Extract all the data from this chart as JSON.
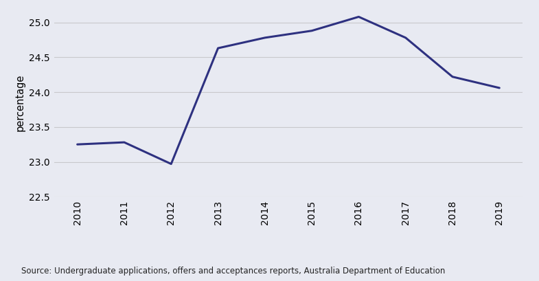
{
  "years": [
    2010,
    2011,
    2012,
    2013,
    2014,
    2015,
    2016,
    2017,
    2018,
    2019
  ],
  "values": [
    23.25,
    23.28,
    22.97,
    24.63,
    24.78,
    24.88,
    25.08,
    24.78,
    24.22,
    24.06
  ],
  "line_color": "#2e3180",
  "line_width": 2.2,
  "background_color": "#e8eaf2",
  "ylabel": "percentage",
  "ylim": [
    22.5,
    25.2
  ],
  "yticks": [
    22.5,
    23.0,
    23.5,
    24.0,
    24.5,
    25.0
  ],
  "grid_color": "#c8c8cc",
  "source_text": "Source: Undergraduate applications, offers and acceptances reports, Australia Department of Education",
  "tick_fontsize": 10,
  "ylabel_fontsize": 10.5,
  "source_fontsize": 8.5
}
